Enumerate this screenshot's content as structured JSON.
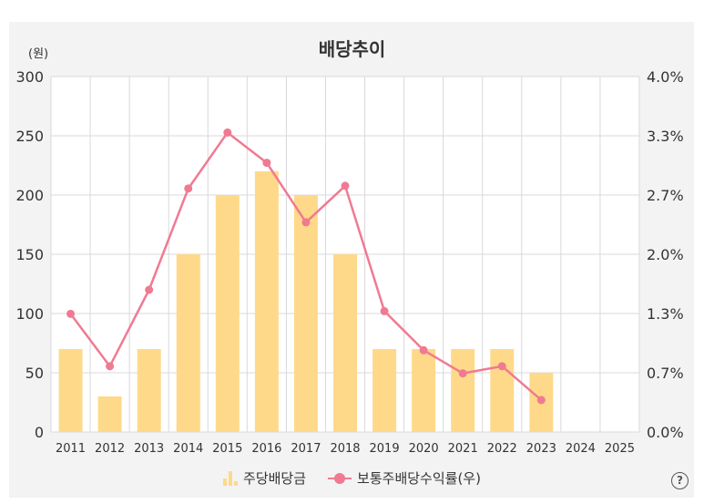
{
  "chart_data": {
    "type": "bar",
    "title": "배당추이",
    "y_unit": "(원)",
    "categories": [
      "2011",
      "2012",
      "2013",
      "2014",
      "2015",
      "2016",
      "2017",
      "2018",
      "2019",
      "2020",
      "2021",
      "2022",
      "2023",
      "2024",
      "2025"
    ],
    "series": [
      {
        "name": "주당배당금",
        "type": "bar",
        "axis": "left",
        "values": [
          70,
          30,
          70,
          150,
          200,
          220,
          200,
          150,
          70,
          70,
          70,
          70,
          50,
          null,
          null
        ]
      },
      {
        "name": "보통주배당수익률(우)",
        "type": "line",
        "axis": "right",
        "values": [
          1.33,
          0.74,
          1.6,
          2.74,
          3.37,
          3.03,
          2.36,
          2.77,
          1.36,
          0.92,
          0.66,
          0.74,
          0.36,
          null,
          null
        ]
      }
    ],
    "y_left": {
      "min": 0,
      "max": 300,
      "ticks": [
        0,
        50,
        100,
        150,
        200,
        250,
        300
      ]
    },
    "y_right": {
      "min": 0,
      "max": 4.0,
      "ticks": [
        "0.0%",
        "0.7%",
        "1.3%",
        "2.0%",
        "2.7%",
        "3.3%",
        "4.0%"
      ]
    },
    "grid": true,
    "legend_position": "bottom-center",
    "colors": {
      "bar": "#ffd98a",
      "line": "#f07a92",
      "grid": "#d9d9dc",
      "frame": "#f3f3f4"
    }
  },
  "help_icon": "?"
}
